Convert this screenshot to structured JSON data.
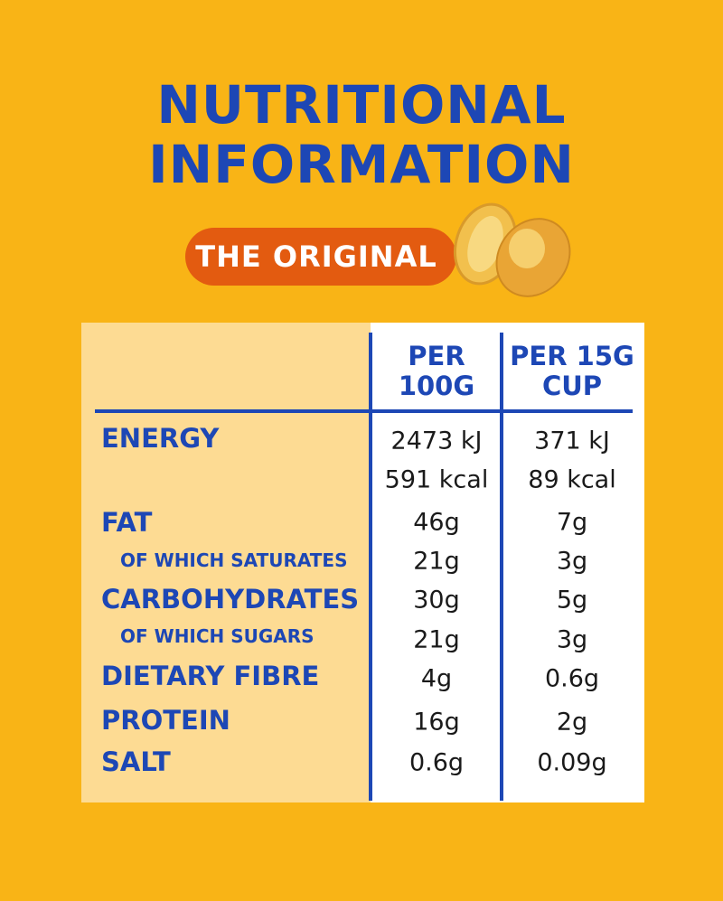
{
  "title_lines": [
    "NUTRITIONAL",
    "INFORMATION"
  ],
  "badge": "THE ORIGINAL",
  "table": {
    "headers": [
      [
        "PER",
        "100G"
      ],
      [
        "PER 15G",
        "CUP"
      ]
    ],
    "rows": [
      {
        "label": "ENERGY",
        "per_100g": [
          "2473 kJ",
          "591 kcal"
        ],
        "per_cup": [
          "371 kJ",
          "89 kcal"
        ]
      },
      {
        "label": "FAT",
        "per_100g": "46g",
        "per_cup": "7g"
      },
      {
        "label": "OF WHICH SATURATES",
        "per_100g": "21g",
        "per_cup": "3g"
      },
      {
        "label": "CARBOHYDRATES",
        "per_100g": "30g",
        "per_cup": "5g"
      },
      {
        "label": "OF WHICH SUGARS",
        "per_100g": "21g",
        "per_cup": "3g"
      },
      {
        "label": "DIETARY FIBRE",
        "per_100g": "4g",
        "per_cup": "0.6g"
      },
      {
        "label": "PROTEIN",
        "per_100g": "16g",
        "per_cup": "2g"
      },
      {
        "label": "SALT",
        "per_100g": "0.6g",
        "per_cup": "0.09g"
      }
    ]
  }
}
